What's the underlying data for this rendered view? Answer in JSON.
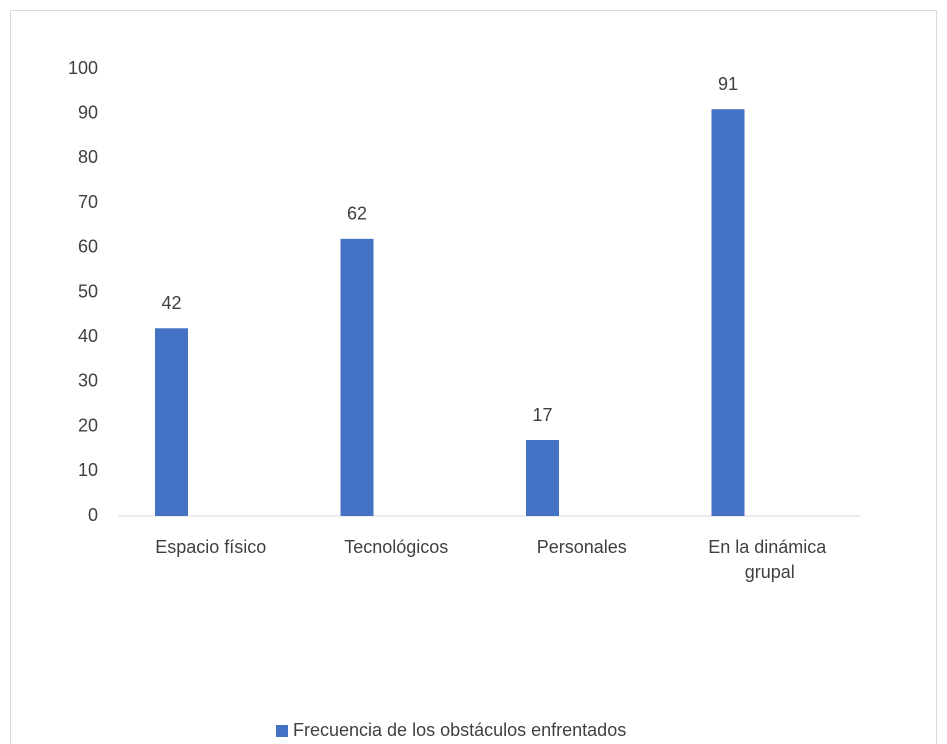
{
  "chart_data": {
    "type": "bar",
    "categories": [
      "Espacio físico",
      "Tecnológicos",
      "Personales",
      "En la dinámica grupal"
    ],
    "series": [
      {
        "name": "Frecuencia de los obstáculos enfrentados",
        "color": "#4472c4",
        "values": [
          42,
          62,
          17,
          91
        ]
      }
    ],
    "ylim": [
      0,
      100
    ],
    "yticks": [
      0,
      10,
      20,
      30,
      40,
      50,
      60,
      70,
      80,
      90,
      100
    ],
    "grid": false,
    "legend": "bottom",
    "data_labels": true
  }
}
